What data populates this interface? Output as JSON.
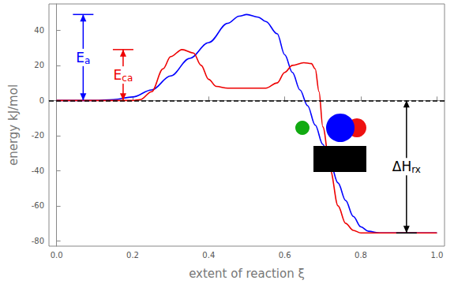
{
  "chart_data": {
    "type": "line",
    "x_label": "extent of reaction ξ",
    "y_label": "energy kJ/mol",
    "xlim": [
      -0.02,
      1.02
    ],
    "xticks": [
      {
        "value": 0,
        "label": "0.0"
      },
      {
        "value": 0.2,
        "label": "0.2"
      },
      {
        "value": 0.4,
        "label": "0.4"
      },
      {
        "value": 0.6,
        "label": "0.6"
      },
      {
        "value": 0.8,
        "label": "0.8"
      },
      {
        "value": 1,
        "label": "1.0"
      }
    ],
    "ylim": [
      -83,
      55
    ],
    "yticks": [
      -80,
      -60,
      -40,
      -20,
      0,
      20,
      40
    ],
    "grid": false,
    "reference_line": {
      "value": 0,
      "line_style": "dashed",
      "color": "#000000"
    },
    "series": [
      {
        "color": "#0000ff",
        "x": [
          0,
          0.1,
          0.15,
          0.2,
          0.25,
          0.3,
          0.35,
          0.4,
          0.45,
          0.48,
          0.5,
          0.53,
          0.55,
          0.58,
          0.6,
          0.62,
          0.64,
          0.66,
          0.68,
          0.7,
          0.72,
          0.74,
          0.76,
          0.78,
          0.8,
          0.82,
          0.85,
          0.9,
          1
        ],
        "values": [
          0,
          0,
          0.5,
          2,
          6,
          14,
          24,
          33,
          44,
          48,
          49,
          47.5,
          45,
          38,
          26,
          16,
          6,
          -3,
          -14,
          -25,
          -36,
          -47,
          -57,
          -66,
          -72,
          -74.5,
          -75.5,
          -75.5,
          -75.5
        ]
      },
      {
        "color": "#ee0000",
        "x": [
          0,
          0.1,
          0.2,
          0.22,
          0.25,
          0.28,
          0.3,
          0.33,
          0.36,
          0.38,
          0.4,
          0.42,
          0.45,
          0.5,
          0.55,
          0.58,
          0.6,
          0.62,
          0.65,
          0.67,
          0.68,
          0.69,
          0.7,
          0.72,
          0.74,
          0.76,
          0.78,
          0.8,
          0.85,
          1
        ],
        "values": [
          0,
          0,
          0,
          0.5,
          5,
          18,
          25,
          29,
          27,
          20,
          12,
          8,
          7,
          7,
          7,
          10,
          16,
          20,
          21.5,
          21,
          18,
          5,
          -15,
          -40,
          -60,
          -70,
          -74,
          -75.5,
          -75.5,
          -75.5
        ]
      }
    ],
    "annotations": [
      {
        "main": "E",
        "subscript": "a",
        "x": 0.07,
        "from": 0,
        "to": 49,
        "color": "#0000ff"
      },
      {
        "main": "E",
        "subscript": "ca",
        "x": 0.175,
        "from": 0,
        "to": 29,
        "color": "#ee0000"
      },
      {
        "main": "ΔH",
        "subscript": "rx",
        "x": 0.92,
        "from": 0,
        "to": -75.5,
        "color": "#000000"
      }
    ]
  }
}
